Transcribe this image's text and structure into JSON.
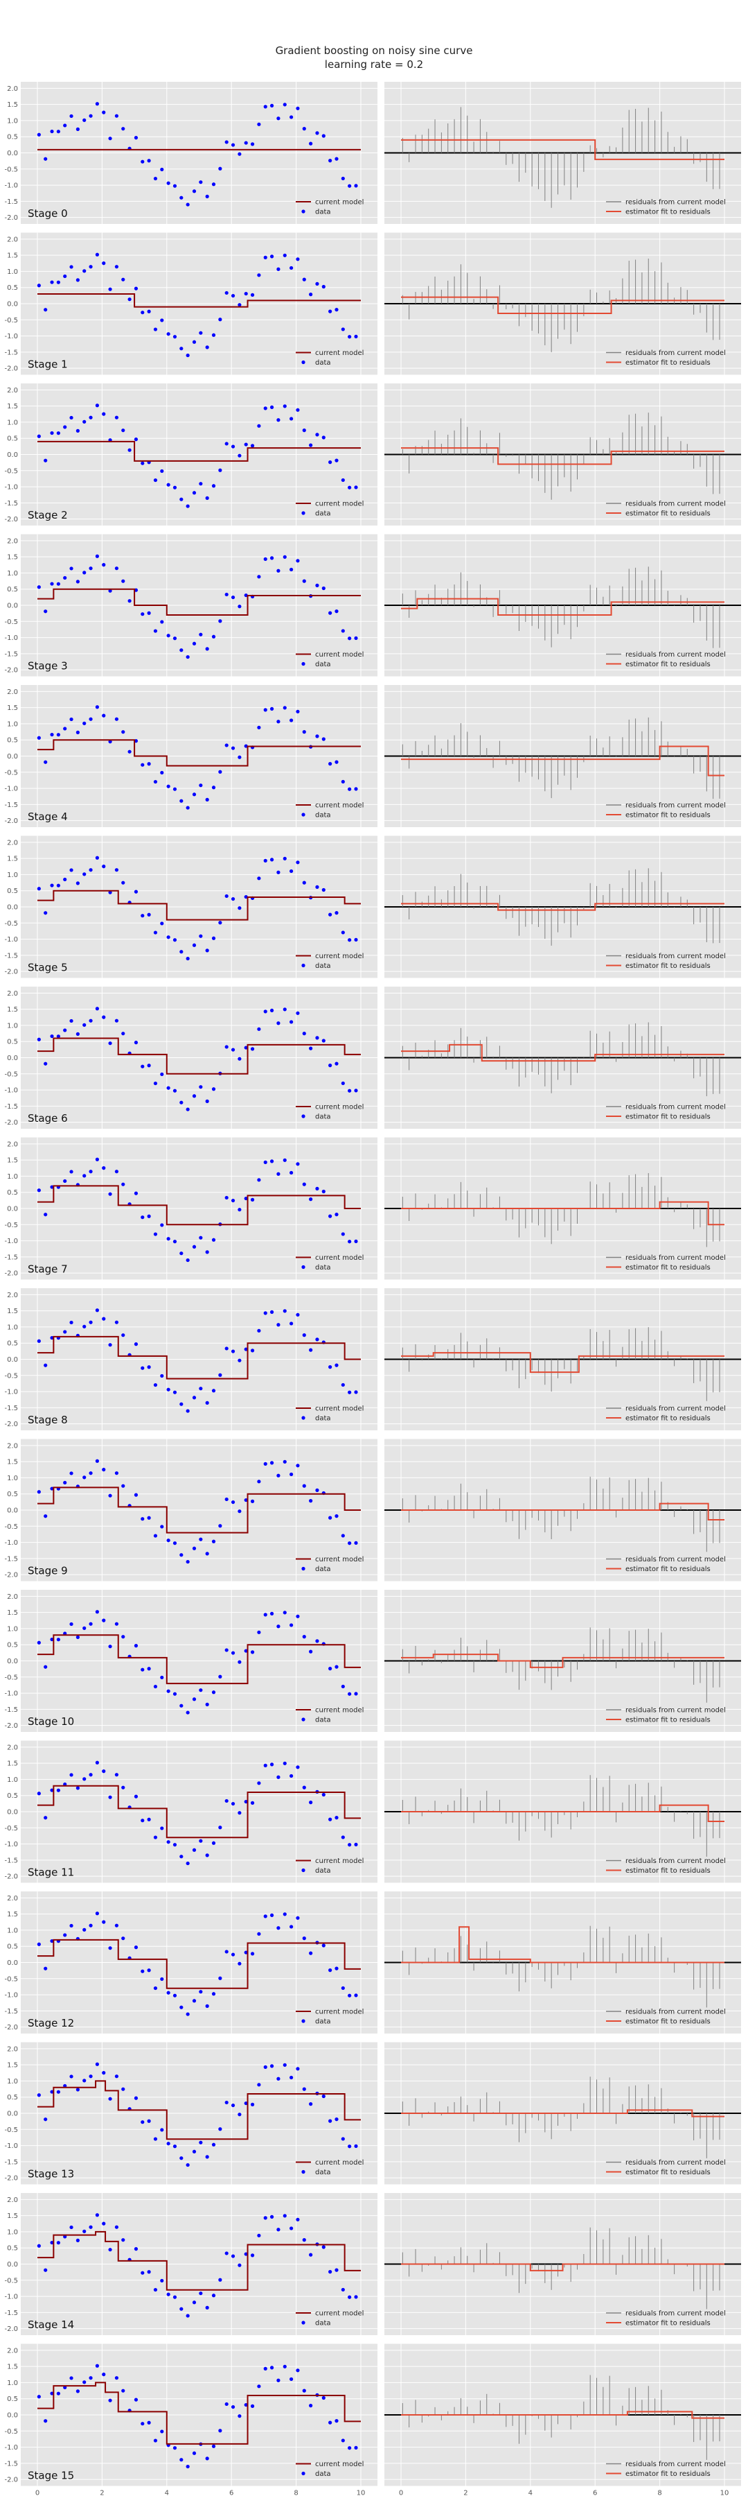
{
  "figure": {
    "title_line1": "Gradient boosting on noisy sine curve",
    "title_line2": "learning rate = 0.2"
  },
  "legend": {
    "left_model": "current model",
    "left_data": "data",
    "right_residuals": "residuals from current model",
    "right_estimator": "estimator fit to residuals"
  },
  "colors": {
    "panel_bg": "#e5e5e5",
    "grid": "#ffffff",
    "model_line": "#8b0000",
    "data_points": "#0000ff",
    "residuals": "#808080",
    "estimator": "#e24a33",
    "zero_line": "#000000"
  },
  "chart_data": {
    "type": "line",
    "x": [
      0.05,
      0.25,
      0.45,
      0.65,
      0.85,
      1.05,
      1.25,
      1.45,
      1.65,
      1.85,
      2.05,
      2.25,
      2.45,
      2.65,
      2.85,
      3.05,
      3.25,
      3.45,
      3.65,
      3.85,
      4.05,
      4.25,
      4.45,
      4.65,
      4.85,
      5.05,
      5.25,
      5.45,
      5.65,
      5.85,
      6.05,
      6.25,
      6.45,
      6.65,
      6.85,
      7.05,
      7.25,
      7.45,
      7.65,
      7.85,
      8.05,
      8.25,
      8.45,
      8.65,
      8.85,
      9.05,
      9.25,
      9.45,
      9.65,
      9.85
    ],
    "y": [
      0.1,
      0.3,
      0.6,
      0.8,
      0.9,
      1.0,
      1.1,
      1.2,
      1.1,
      1.0,
      0.9,
      0.8,
      0.6,
      0.4,
      0.2,
      0.0,
      -0.2,
      -0.4,
      -0.6,
      -0.8,
      -1.0,
      -1.2,
      -1.3,
      -1.2,
      -1.0,
      -0.9,
      -0.8,
      -0.6,
      -0.4,
      -0.2,
      0.0,
      0.2,
      0.4,
      0.6,
      0.8,
      0.9,
      1.0,
      1.1,
      1.2,
      1.0,
      0.9,
      0.8,
      0.6,
      0.4,
      0.2,
      0.0,
      -0.2,
      -0.4,
      -0.6,
      -0.8
    ],
    "xlim": [
      0,
      10
    ],
    "ylim": [
      -2.2,
      2.2
    ],
    "left_ticks_y": [
      "2.0",
      "1.5",
      "1.0",
      "0.5",
      "0.0",
      "-0.5",
      "-1.0",
      "-1.5",
      "-2.0"
    ],
    "x_ticks": [
      "0",
      "2",
      "4",
      "6",
      "8",
      "10"
    ],
    "stages": [
      {
        "label": "Stage 0",
        "model": [
          [
            0,
            10,
            0.1
          ]
        ],
        "estimator": [
          [
            0,
            6,
            0.4
          ],
          [
            6,
            10,
            -0.2
          ]
        ]
      },
      {
        "label": "Stage 1",
        "model": [
          [
            0,
            3,
            0.3
          ],
          [
            3,
            6.5,
            -0.1
          ],
          [
            6.5,
            10,
            0.1
          ]
        ],
        "estimator": [
          [
            0,
            3,
            0.2
          ],
          [
            3,
            6.5,
            -0.3
          ],
          [
            6.5,
            10,
            0.1
          ]
        ]
      },
      {
        "label": "Stage 2",
        "model": [
          [
            0,
            3,
            0.4
          ],
          [
            3,
            6.5,
            -0.2
          ],
          [
            6.5,
            10,
            0.2
          ]
        ],
        "estimator": [
          [
            0,
            3,
            0.2
          ],
          [
            3,
            6.5,
            -0.3
          ],
          [
            6.5,
            10,
            0.1
          ]
        ]
      },
      {
        "label": "Stage 3",
        "model": [
          [
            0,
            0.5,
            0.2
          ],
          [
            0.5,
            3,
            0.5
          ],
          [
            3,
            4,
            0.0
          ],
          [
            4,
            6.5,
            -0.3
          ],
          [
            6.5,
            10,
            0.3
          ]
        ],
        "estimator": [
          [
            0,
            0.5,
            -0.1
          ],
          [
            0.5,
            3,
            0.2
          ],
          [
            3,
            6.5,
            -0.3
          ],
          [
            6.5,
            10,
            0.1
          ]
        ]
      },
      {
        "label": "Stage 4",
        "model": [
          [
            0,
            0.5,
            0.2
          ],
          [
            0.5,
            3,
            0.5
          ],
          [
            3,
            4,
            0.0
          ],
          [
            4,
            6.5,
            -0.3
          ],
          [
            6.5,
            10,
            0.3
          ]
        ],
        "estimator": [
          [
            0,
            8,
            -0.1
          ],
          [
            8,
            9.5,
            0.3
          ],
          [
            9.5,
            10,
            -0.6
          ]
        ]
      },
      {
        "label": "Stage 5",
        "model": [
          [
            0,
            0.5,
            0.2
          ],
          [
            0.5,
            2.5,
            0.5
          ],
          [
            2.5,
            4,
            0.1
          ],
          [
            4,
            6.5,
            -0.4
          ],
          [
            6.5,
            9.5,
            0.3
          ],
          [
            9.5,
            10,
            0.1
          ]
        ],
        "estimator": [
          [
            0,
            3,
            0.1
          ],
          [
            3,
            6,
            -0.1
          ],
          [
            6,
            10,
            0.1
          ]
        ]
      },
      {
        "label": "Stage 6",
        "model": [
          [
            0,
            0.5,
            0.2
          ],
          [
            0.5,
            2.5,
            0.6
          ],
          [
            2.5,
            4,
            0.1
          ],
          [
            4,
            6.5,
            -0.5
          ],
          [
            6.5,
            9.5,
            0.4
          ],
          [
            9.5,
            10,
            0.1
          ]
        ],
        "estimator": [
          [
            0,
            1.5,
            0.2
          ],
          [
            1.5,
            2.5,
            0.4
          ],
          [
            2.5,
            6,
            -0.1
          ],
          [
            6,
            10,
            0.1
          ]
        ]
      },
      {
        "label": "Stage 7",
        "model": [
          [
            0,
            0.5,
            0.2
          ],
          [
            0.5,
            2.5,
            0.7
          ],
          [
            2.5,
            4,
            0.1
          ],
          [
            4,
            6.5,
            -0.5
          ],
          [
            6.5,
            9.5,
            0.4
          ],
          [
            9.5,
            10,
            0.0
          ]
        ],
        "estimator": [
          [
            0,
            8,
            0.0
          ],
          [
            8,
            9.5,
            0.2
          ],
          [
            9.5,
            10,
            -0.5
          ]
        ]
      },
      {
        "label": "Stage 8",
        "model": [
          [
            0,
            0.5,
            0.2
          ],
          [
            0.5,
            2.5,
            0.7
          ],
          [
            2.5,
            4,
            0.1
          ],
          [
            4,
            6.5,
            -0.6
          ],
          [
            6.5,
            9.5,
            0.5
          ],
          [
            9.5,
            10,
            0.0
          ]
        ],
        "estimator": [
          [
            0,
            1,
            0.1
          ],
          [
            1,
            4,
            0.2
          ],
          [
            4,
            5.5,
            -0.4
          ],
          [
            5.5,
            10,
            0.1
          ]
        ]
      },
      {
        "label": "Stage 9",
        "model": [
          [
            0,
            0.5,
            0.2
          ],
          [
            0.5,
            2.5,
            0.7
          ],
          [
            2.5,
            4,
            0.1
          ],
          [
            4,
            6.5,
            -0.7
          ],
          [
            6.5,
            9.5,
            0.5
          ],
          [
            9.5,
            10,
            0.0
          ]
        ],
        "estimator": [
          [
            0,
            8,
            0.0
          ],
          [
            8,
            9.5,
            0.2
          ],
          [
            9.5,
            10,
            -0.3
          ]
        ]
      },
      {
        "label": "Stage 10",
        "model": [
          [
            0,
            0.5,
            0.2
          ],
          [
            0.5,
            2.5,
            0.8
          ],
          [
            2.5,
            4,
            0.1
          ],
          [
            4,
            6.5,
            -0.7
          ],
          [
            6.5,
            9.5,
            0.5
          ],
          [
            9.5,
            10,
            -0.2
          ]
        ],
        "estimator": [
          [
            0,
            1,
            0.1
          ],
          [
            1,
            3,
            0.2
          ],
          [
            3,
            4,
            0.0
          ],
          [
            4,
            5,
            -0.2
          ],
          [
            5,
            10,
            0.1
          ]
        ]
      },
      {
        "label": "Stage 11",
        "model": [
          [
            0,
            0.5,
            0.2
          ],
          [
            0.5,
            2.5,
            0.8
          ],
          [
            2.5,
            4,
            0.1
          ],
          [
            4,
            6.5,
            -0.8
          ],
          [
            6.5,
            9.5,
            0.6
          ],
          [
            9.5,
            10,
            -0.2
          ]
        ],
        "estimator": [
          [
            0,
            8,
            0.0
          ],
          [
            8,
            9.5,
            0.2
          ],
          [
            9.5,
            10,
            -0.3
          ]
        ]
      },
      {
        "label": "Stage 12",
        "model": [
          [
            0,
            0.5,
            0.2
          ],
          [
            0.5,
            2.5,
            0.7
          ],
          [
            2.5,
            4,
            0.1
          ],
          [
            4,
            6.5,
            -0.8
          ],
          [
            6.5,
            9.5,
            0.6
          ],
          [
            9.5,
            10,
            -0.2
          ]
        ],
        "estimator": [
          [
            0,
            1.8,
            0.0
          ],
          [
            1.8,
            2.1,
            1.1
          ],
          [
            2.1,
            4,
            0.1
          ],
          [
            4,
            10,
            0.0
          ]
        ]
      },
      {
        "label": "Stage 13",
        "model": [
          [
            0,
            0.5,
            0.2
          ],
          [
            0.5,
            1.8,
            0.8
          ],
          [
            1.8,
            2.1,
            1.0
          ],
          [
            2.1,
            2.5,
            0.7
          ],
          [
            2.5,
            4,
            0.1
          ],
          [
            4,
            6.5,
            -0.8
          ],
          [
            6.5,
            9.5,
            0.6
          ],
          [
            9.5,
            10,
            -0.2
          ]
        ],
        "estimator": [
          [
            0,
            7,
            0.0
          ],
          [
            7,
            9,
            0.1
          ],
          [
            9,
            10,
            -0.1
          ]
        ]
      },
      {
        "label": "Stage 14",
        "model": [
          [
            0,
            0.5,
            0.2
          ],
          [
            0.5,
            1.8,
            0.9
          ],
          [
            1.8,
            2.1,
            1.0
          ],
          [
            2.1,
            2.5,
            0.7
          ],
          [
            2.5,
            4,
            0.1
          ],
          [
            4,
            6.5,
            -0.8
          ],
          [
            6.5,
            9.5,
            0.6
          ],
          [
            9.5,
            10,
            -0.2
          ]
        ],
        "estimator": [
          [
            0,
            4,
            0.0
          ],
          [
            4,
            5,
            -0.2
          ],
          [
            5,
            10,
            0.0
          ]
        ]
      },
      {
        "label": "Stage 15",
        "model": [
          [
            0,
            0.5,
            0.2
          ],
          [
            0.5,
            1.8,
            0.9
          ],
          [
            1.8,
            2.1,
            1.0
          ],
          [
            2.1,
            2.5,
            0.7
          ],
          [
            2.5,
            4,
            0.1
          ],
          [
            4,
            6.5,
            -0.9
          ],
          [
            6.5,
            9.5,
            0.6
          ],
          [
            9.5,
            10,
            -0.2
          ]
        ],
        "estimator": [
          [
            0,
            7,
            0.0
          ],
          [
            7,
            9,
            0.1
          ],
          [
            9,
            10,
            -0.1
          ]
        ]
      }
    ]
  }
}
